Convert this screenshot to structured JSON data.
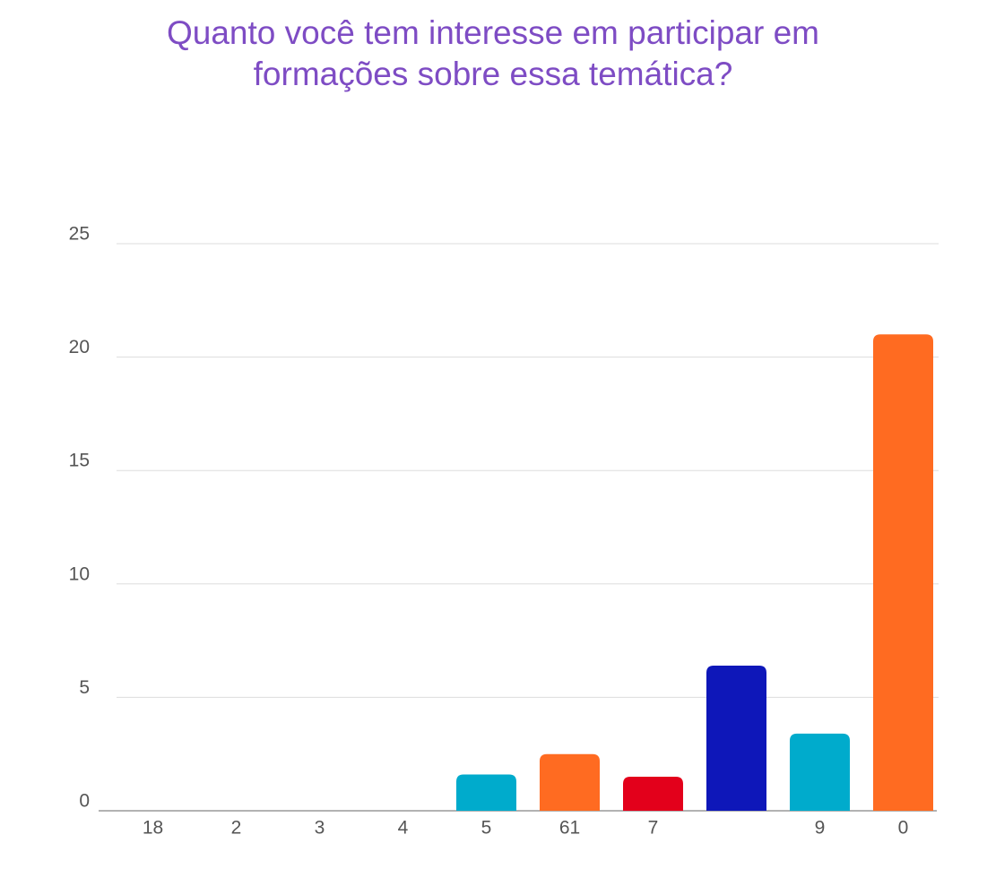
{
  "chart_data": {
    "type": "bar",
    "title": "Quanto você tem interesse em participar em formações sobre essa temática?",
    "categories": [
      "18",
      "2",
      "3",
      "4",
      "5",
      "61",
      "7",
      null,
      "9",
      "0"
    ],
    "values": [
      0,
      0,
      0,
      0,
      1.6,
      2.5,
      1.5,
      6.4,
      3.4,
      21
    ],
    "colors": [
      "#e3001b",
      "#7f4fc7",
      "#a8e116",
      "#0e17b9",
      "#00abcc",
      "#ff6b21",
      "#e3001b",
      "#0e17b9",
      "#00abcc",
      "#ff6b21"
    ],
    "ylim": [
      0,
      25
    ],
    "yticks": [
      0,
      5,
      10,
      15,
      20,
      25
    ],
    "grid": true
  }
}
